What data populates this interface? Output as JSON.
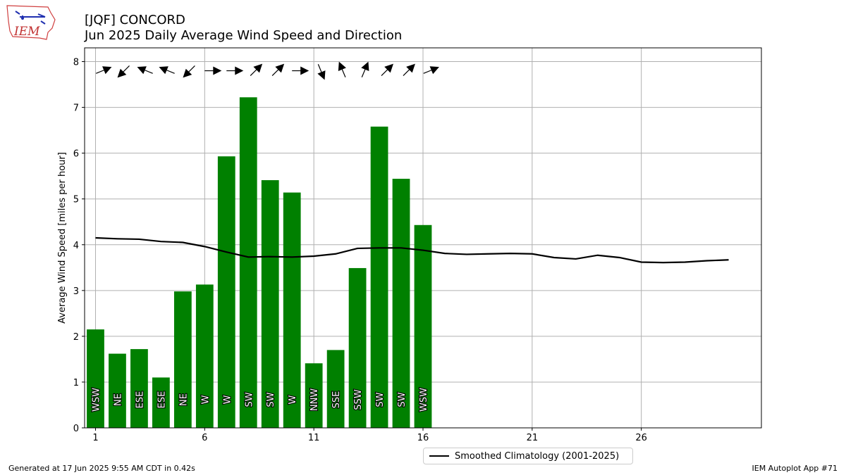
{
  "header": {
    "title": "[JQF] CONCORD",
    "subtitle": "Jun 2025 Daily Average Wind Speed and Direction",
    "logo_text": "IEM"
  },
  "footer": {
    "generated": "Generated at 17 Jun 2025 9:55 AM CDT in 0.42s",
    "app": "IEM Autoplot App #71"
  },
  "legend": {
    "label": "Smoothed Climatology (2001-2025)"
  },
  "colors": {
    "bar": "#008000",
    "climo_line": "#000000",
    "grid": "#b0b0b0"
  },
  "chart_data": {
    "type": "bar",
    "ylabel": "Average Wind Speed [miles per hour]",
    "xlabel": "",
    "xlim": [
      0.5,
      31.5
    ],
    "ylim": [
      0,
      8.3
    ],
    "xticks": [
      1,
      6,
      11,
      16,
      21,
      26
    ],
    "yticks": [
      0,
      1,
      2,
      3,
      4,
      5,
      6,
      7,
      8
    ],
    "grid": true,
    "legend_placement": "bottom-center",
    "days": [
      1,
      2,
      3,
      4,
      5,
      6,
      7,
      8,
      9,
      10,
      11,
      12,
      13,
      14,
      15,
      16
    ],
    "values": [
      2.15,
      1.62,
      1.72,
      1.1,
      2.98,
      3.13,
      5.93,
      7.22,
      5.41,
      5.14,
      1.41,
      1.7,
      3.49,
      6.58,
      5.44,
      4.43
    ],
    "directions": [
      "WSW",
      "NE",
      "ESE",
      "ESE",
      "NE",
      "W",
      "W",
      "SW",
      "SW",
      "W",
      "NNW",
      "SSE",
      "SSW",
      "SW",
      "SW",
      "WSW"
    ],
    "arrow_to_deg": [
      67.5,
      225,
      292.5,
      292.5,
      225,
      90,
      90,
      45,
      45,
      90,
      157.5,
      337.5,
      22.5,
      45,
      45,
      67.5
    ],
    "series": [
      {
        "name": "Smoothed Climatology (2001-2025)",
        "x": [
          1,
          2,
          3,
          4,
          5,
          6,
          7,
          8,
          9,
          10,
          11,
          12,
          13,
          14,
          15,
          16,
          17,
          18,
          19,
          20,
          21,
          22,
          23,
          24,
          25,
          26,
          27,
          28,
          29,
          30
        ],
        "values": [
          4.15,
          4.13,
          4.12,
          4.07,
          4.05,
          3.96,
          3.84,
          3.73,
          3.74,
          3.73,
          3.75,
          3.8,
          3.92,
          3.93,
          3.93,
          3.88,
          3.81,
          3.79,
          3.8,
          3.81,
          3.8,
          3.72,
          3.69,
          3.77,
          3.72,
          3.62,
          3.61,
          3.62,
          3.65,
          3.67
        ]
      }
    ]
  }
}
